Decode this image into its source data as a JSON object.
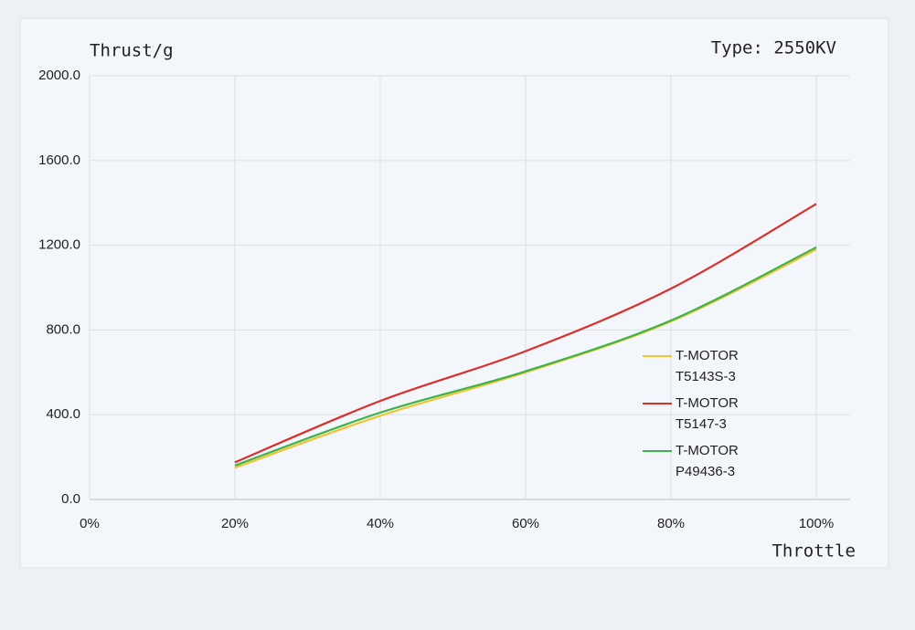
{
  "chart_data": {
    "type": "line",
    "title": "Type: 2550KV",
    "y_label": "Thrust/g",
    "x_label": "Throttle",
    "x": [
      20,
      40,
      60,
      80,
      100
    ],
    "series": [
      {
        "name": "T-MOTOR T5143S-3",
        "color": "#f2c230",
        "values": [
          150,
          395,
          600,
          840,
          1180
        ]
      },
      {
        "name": "T-MOTOR T5147-3",
        "color": "#d9302c",
        "values": [
          175,
          465,
          700,
          995,
          1395
        ]
      },
      {
        "name": "T-MOTOR P49436-3",
        "color": "#3cb44b",
        "values": [
          160,
          410,
          605,
          845,
          1190
        ]
      }
    ],
    "xlim": [
      0,
      100
    ],
    "xticks": [
      {
        "value": 0,
        "label": "0%"
      },
      {
        "value": 20,
        "label": "20%"
      },
      {
        "value": 40,
        "label": "40%"
      },
      {
        "value": 60,
        "label": "60%"
      },
      {
        "value": 80,
        "label": "80%"
      },
      {
        "value": 100,
        "label": "100%"
      }
    ],
    "ylim": [
      0,
      2000
    ],
    "yticks": [
      {
        "value": 0,
        "label": "0.0"
      },
      {
        "value": 400,
        "label": "400.0"
      },
      {
        "value": 800,
        "label": "800.0"
      },
      {
        "value": 1200,
        "label": "1200.0"
      },
      {
        "value": 1600,
        "label": "1600.0"
      },
      {
        "value": 2000,
        "label": "2000.0"
      }
    ],
    "grid": true
  }
}
